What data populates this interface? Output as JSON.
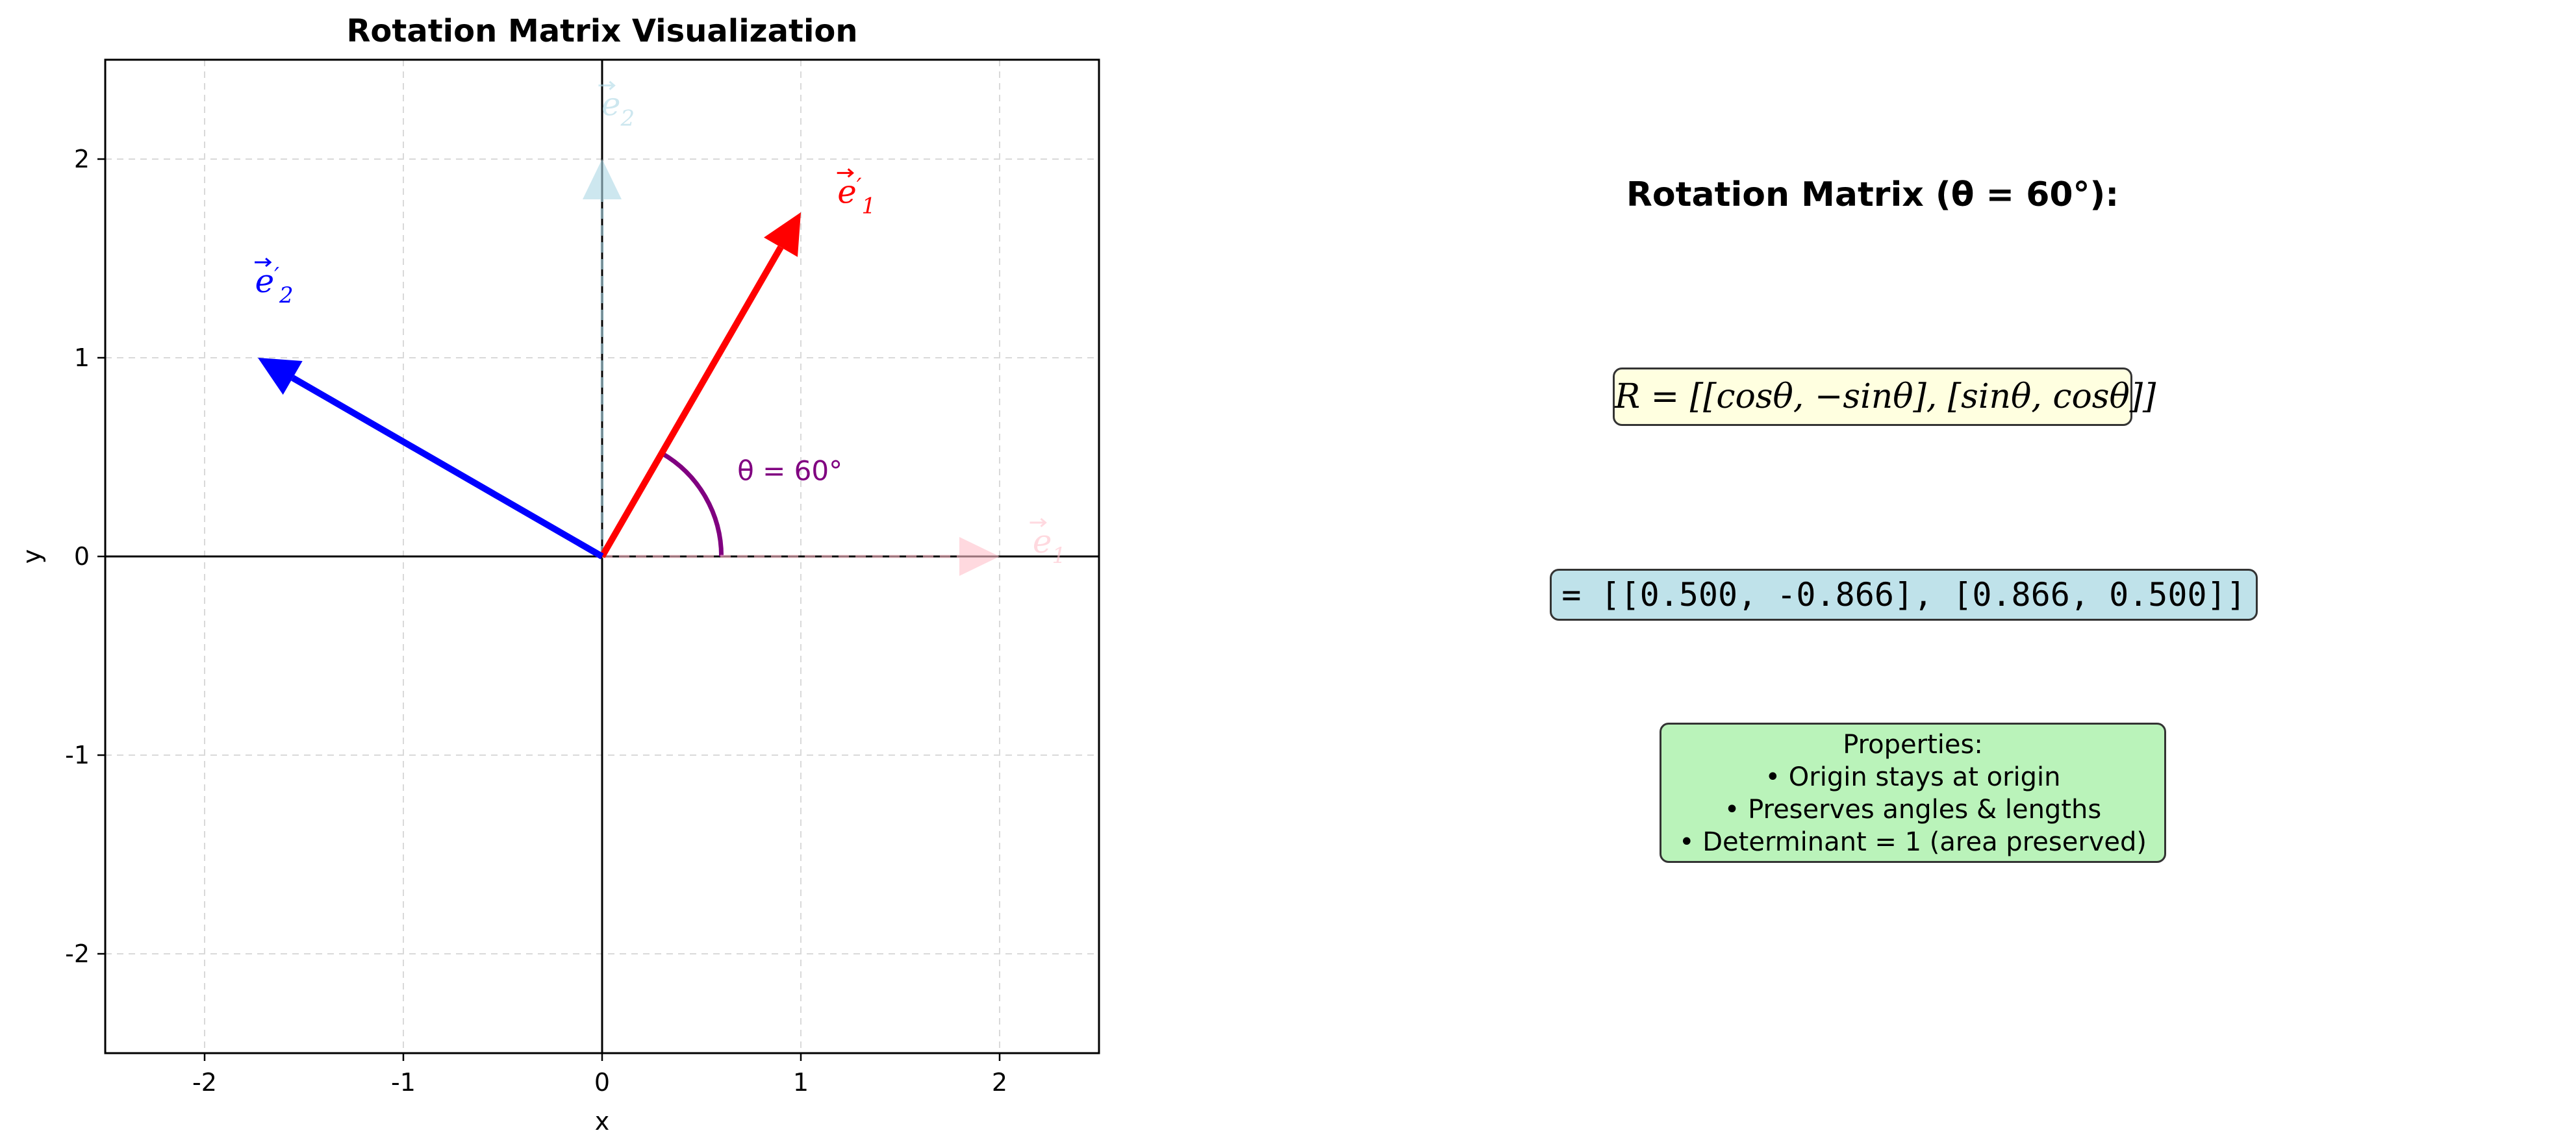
{
  "chart_data": {
    "type": "vector-diagram",
    "title": "Rotation Matrix Visualization",
    "xlabel": "x",
    "ylabel": "y",
    "xlim": [
      -2.5,
      2.5
    ],
    "ylim": [
      -2.5,
      2.5
    ],
    "x_ticks": [
      -2,
      -1,
      0,
      1,
      2
    ],
    "y_ticks": [
      -2,
      -1,
      0,
      1,
      2
    ],
    "x_tick_labels": [
      "-2",
      "-1",
      "0",
      "1",
      "2"
    ],
    "y_tick_labels": [
      "-2",
      "-1",
      "0",
      "1",
      "2"
    ],
    "grid": true,
    "vectors": [
      {
        "id": "e1",
        "label_main": "e",
        "label_prime": "",
        "label_sub": "1",
        "tail": [
          0,
          0
        ],
        "head": [
          2,
          0
        ],
        "color": "#ffc0cb",
        "style": "dashed",
        "opacity": 0.6,
        "label_pos": [
          2.25,
          0.02
        ]
      },
      {
        "id": "e2",
        "label_main": "e",
        "label_prime": "",
        "label_sub": "2",
        "tail": [
          0,
          0
        ],
        "head": [
          0,
          2
        ],
        "color": "#add8e6",
        "style": "dashed",
        "opacity": 0.6,
        "label_pos": [
          0.08,
          2.22
        ]
      },
      {
        "id": "e1_prime",
        "label_main": "e",
        "label_prime": "′",
        "label_sub": "1",
        "tail": [
          0,
          0
        ],
        "head": [
          1.0,
          1.732
        ],
        "color": "#ff0000",
        "style": "solid",
        "opacity": 1,
        "label_pos": [
          1.28,
          1.78
        ]
      },
      {
        "id": "e2_prime",
        "label_main": "e",
        "label_prime": "′",
        "label_sub": "2",
        "tail": [
          0,
          0
        ],
        "head": [
          -1.732,
          1.0
        ],
        "color": "#0000ff",
        "style": "solid",
        "opacity": 1,
        "label_pos": [
          -1.65,
          1.33
        ]
      }
    ],
    "angle_arc": {
      "radius": 0.6,
      "start_deg": 0,
      "end_deg": 60,
      "color": "#800080",
      "label": "θ = 60°",
      "label_pos": [
        0.68,
        0.43
      ]
    }
  },
  "panel": {
    "title": "Rotation Matrix (θ = 60°):",
    "formula": "R = [[cosθ, −sinθ], [sinθ, cosθ]]",
    "values": "= [[0.500, -0.866], [0.866, 0.500]]",
    "properties": {
      "heading": "Properties:",
      "items": [
        "• Origin stays at origin",
        "• Preserves angles & lengths",
        "• Determinant = 1 (area preserved)"
      ]
    }
  }
}
